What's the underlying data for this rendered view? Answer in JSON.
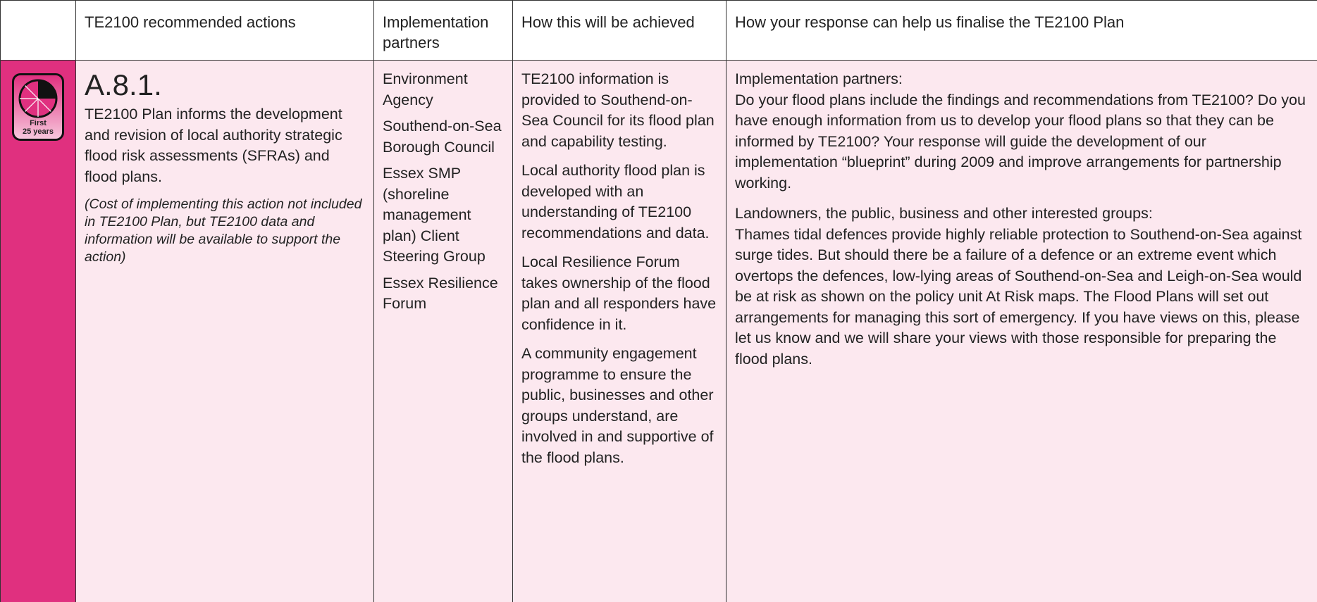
{
  "table": {
    "headers": [
      "TE2100 recommended actions",
      "Implementation partners",
      "How this will be achieved",
      "How your response can help us finalise the TE2100 Plan"
    ],
    "row": {
      "icon": [
        "First",
        "25 years"
      ],
      "action_id": "A.8.1.",
      "action_text": "TE2100 Plan informs the development and revision of local authority strategic flood risk assessments (SFRAs) and flood plans.",
      "action_note": "(Cost of implementing this action not included in TE2100 Plan, but TE2100 data and information will be available to support the action)",
      "partners": [
        "Environment Agency",
        "Southend-on-Sea Borough Council",
        "Essex SMP (shoreline management plan) Client Steering Group",
        "Essex Resilience Forum"
      ],
      "achieved": [
        "TE2100 information is provided to Southend-on-Sea Council for its flood plan and capability testing.",
        "Local authority flood plan is developed with an understanding of TE2100 recommendations and data.",
        "Local Resilience Forum takes ownership of the flood plan and all responders have confidence in it.",
        "A community engagement programme to ensure the public, businesses and other groups understand, are involved in and supportive of the flood plans."
      ],
      "response": [
        {
          "heading": "Implementation partners:",
          "text": "Do your flood plans include the findings and recommendations from TE2100? Do you have enough information from us to develop your flood plans so that they can be informed by TE2100? Your response will guide the development of our implementation “blueprint” during 2009 and improve arrangements for partnership working."
        },
        {
          "heading": "Landowners, the public, business and other interested groups:",
          "text": "Thames tidal defences provide highly reliable protection to Southend-on-Sea against surge tides. But should there be a failure of a defence or an extreme event which overtops the defences, low-lying areas of Southend-on-Sea and Leigh-on-Sea would be at risk as shown on the policy unit At Risk maps. The Flood Plans will set out arrangements for managing this sort of emergency. If you have views on this, please let us know and we will share your views with those responsible for preparing the flood plans."
        }
      ]
    }
  }
}
